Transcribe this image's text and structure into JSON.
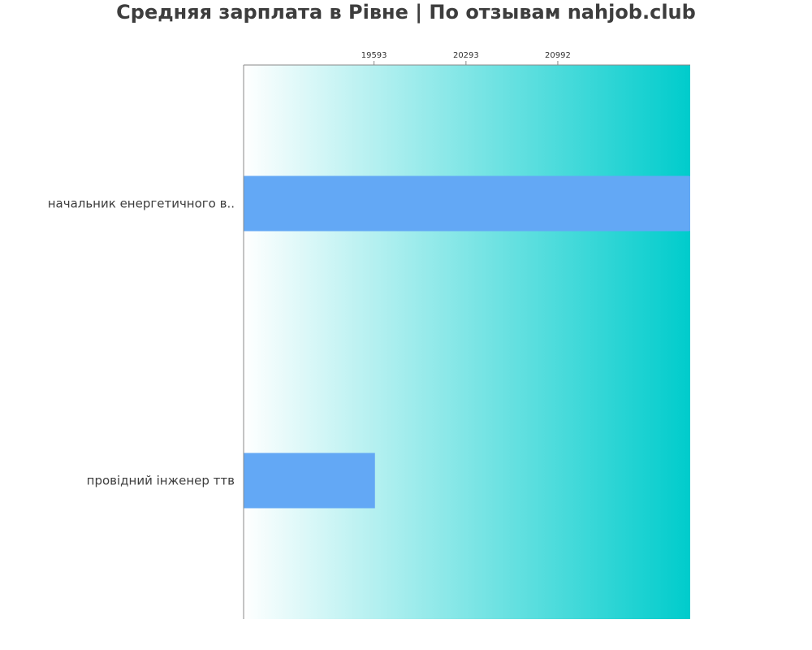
{
  "chart_data": {
    "type": "bar",
    "orientation": "horizontal",
    "title": "Средняя зарплата в Рівне | По отзывам nahjob.club",
    "xlabel": "",
    "ylabel": "",
    "categories": [
      "начальник енергетичного в..",
      "провідний інженер ттв"
    ],
    "series": [
      {
        "values": [
          22000,
          19600
        ]
      }
    ],
    "x_ticks": [
      19593,
      20293,
      20992
    ],
    "xlim": [
      18600,
      22000
    ],
    "grid": false,
    "legend": "none",
    "bar_color": "#63a8f5",
    "background_gradient": [
      "#ffffff",
      "#00cccc"
    ],
    "axis_color": "#888888"
  }
}
